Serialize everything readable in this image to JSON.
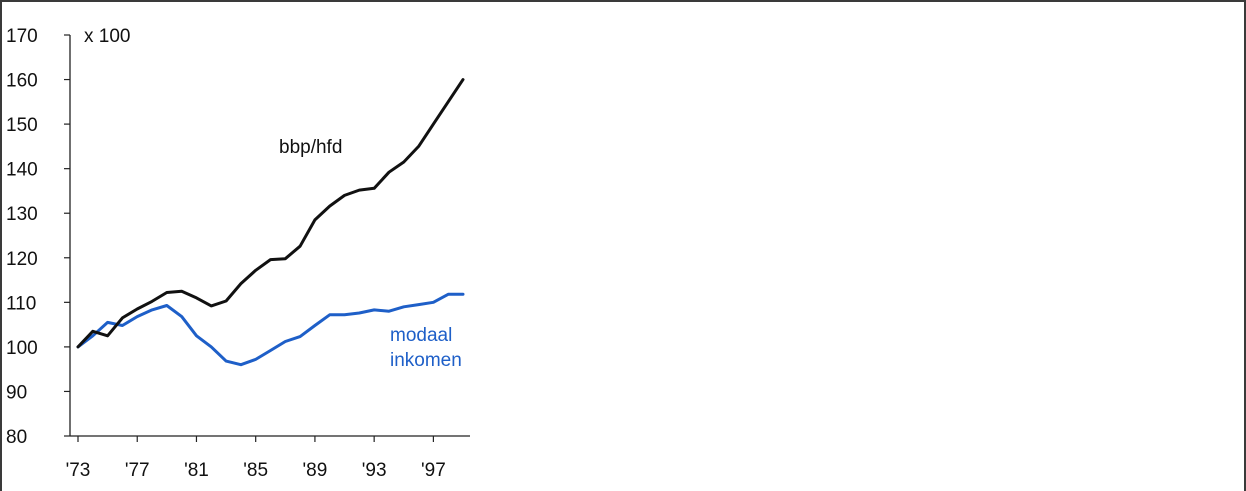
{
  "chart_data": {
    "type": "line",
    "unit_label": "x 100",
    "xlim": [
      1973,
      1999
    ],
    "ylim": [
      80,
      170
    ],
    "x_ticks": [
      1973,
      1977,
      1981,
      1985,
      1989,
      1993,
      1997
    ],
    "x_tick_labels": [
      "'73",
      "'77",
      "'81",
      "'85",
      "'89",
      "'93",
      "'97"
    ],
    "y_ticks": [
      80,
      90,
      100,
      110,
      120,
      130,
      140,
      150,
      160,
      170
    ],
    "y_tick_labels": [
      "80",
      "90",
      "100",
      "110",
      "120",
      "130",
      "140",
      "150",
      "160",
      "170"
    ],
    "grid": false,
    "series": [
      {
        "name": "bbp/hfd",
        "color": "#111111",
        "x": [
          1973,
          1974,
          1975,
          1976,
          1977,
          1978,
          1979,
          1980,
          1981,
          1982,
          1983,
          1984,
          1985,
          1986,
          1987,
          1988,
          1989,
          1990,
          1991,
          1992,
          1993,
          1994,
          1995,
          1996,
          1997,
          1998,
          1999
        ],
        "values": [
          100,
          103.5,
          102.5,
          106.5,
          108.5,
          110.2,
          112.2,
          112.5,
          111,
          109.2,
          110.3,
          114.2,
          117.2,
          119.6,
          119.8,
          122.6,
          128.5,
          131.6,
          134,
          135.2,
          135.6,
          139.2,
          141.5,
          145,
          150,
          155,
          160
        ]
      },
      {
        "name_lines": [
          "modaal",
          "inkomen"
        ],
        "color": "#1e5fc8",
        "x": [
          1973,
          1974,
          1975,
          1976,
          1977,
          1978,
          1979,
          1980,
          1981,
          1982,
          1983,
          1984,
          1985,
          1986,
          1987,
          1988,
          1989,
          1990,
          1991,
          1992,
          1993,
          1994,
          1995,
          1996,
          1997,
          1998,
          1999
        ],
        "values": [
          100,
          102.5,
          105.5,
          104.8,
          106.8,
          108.3,
          109.3,
          106.8,
          102.5,
          100,
          96.8,
          96,
          97.2,
          99.2,
          101.2,
          102.3,
          104.8,
          107.2,
          107.2,
          107.6,
          108.3,
          108,
          109,
          109.5,
          110,
          111.8,
          111.8
        ]
      }
    ]
  }
}
